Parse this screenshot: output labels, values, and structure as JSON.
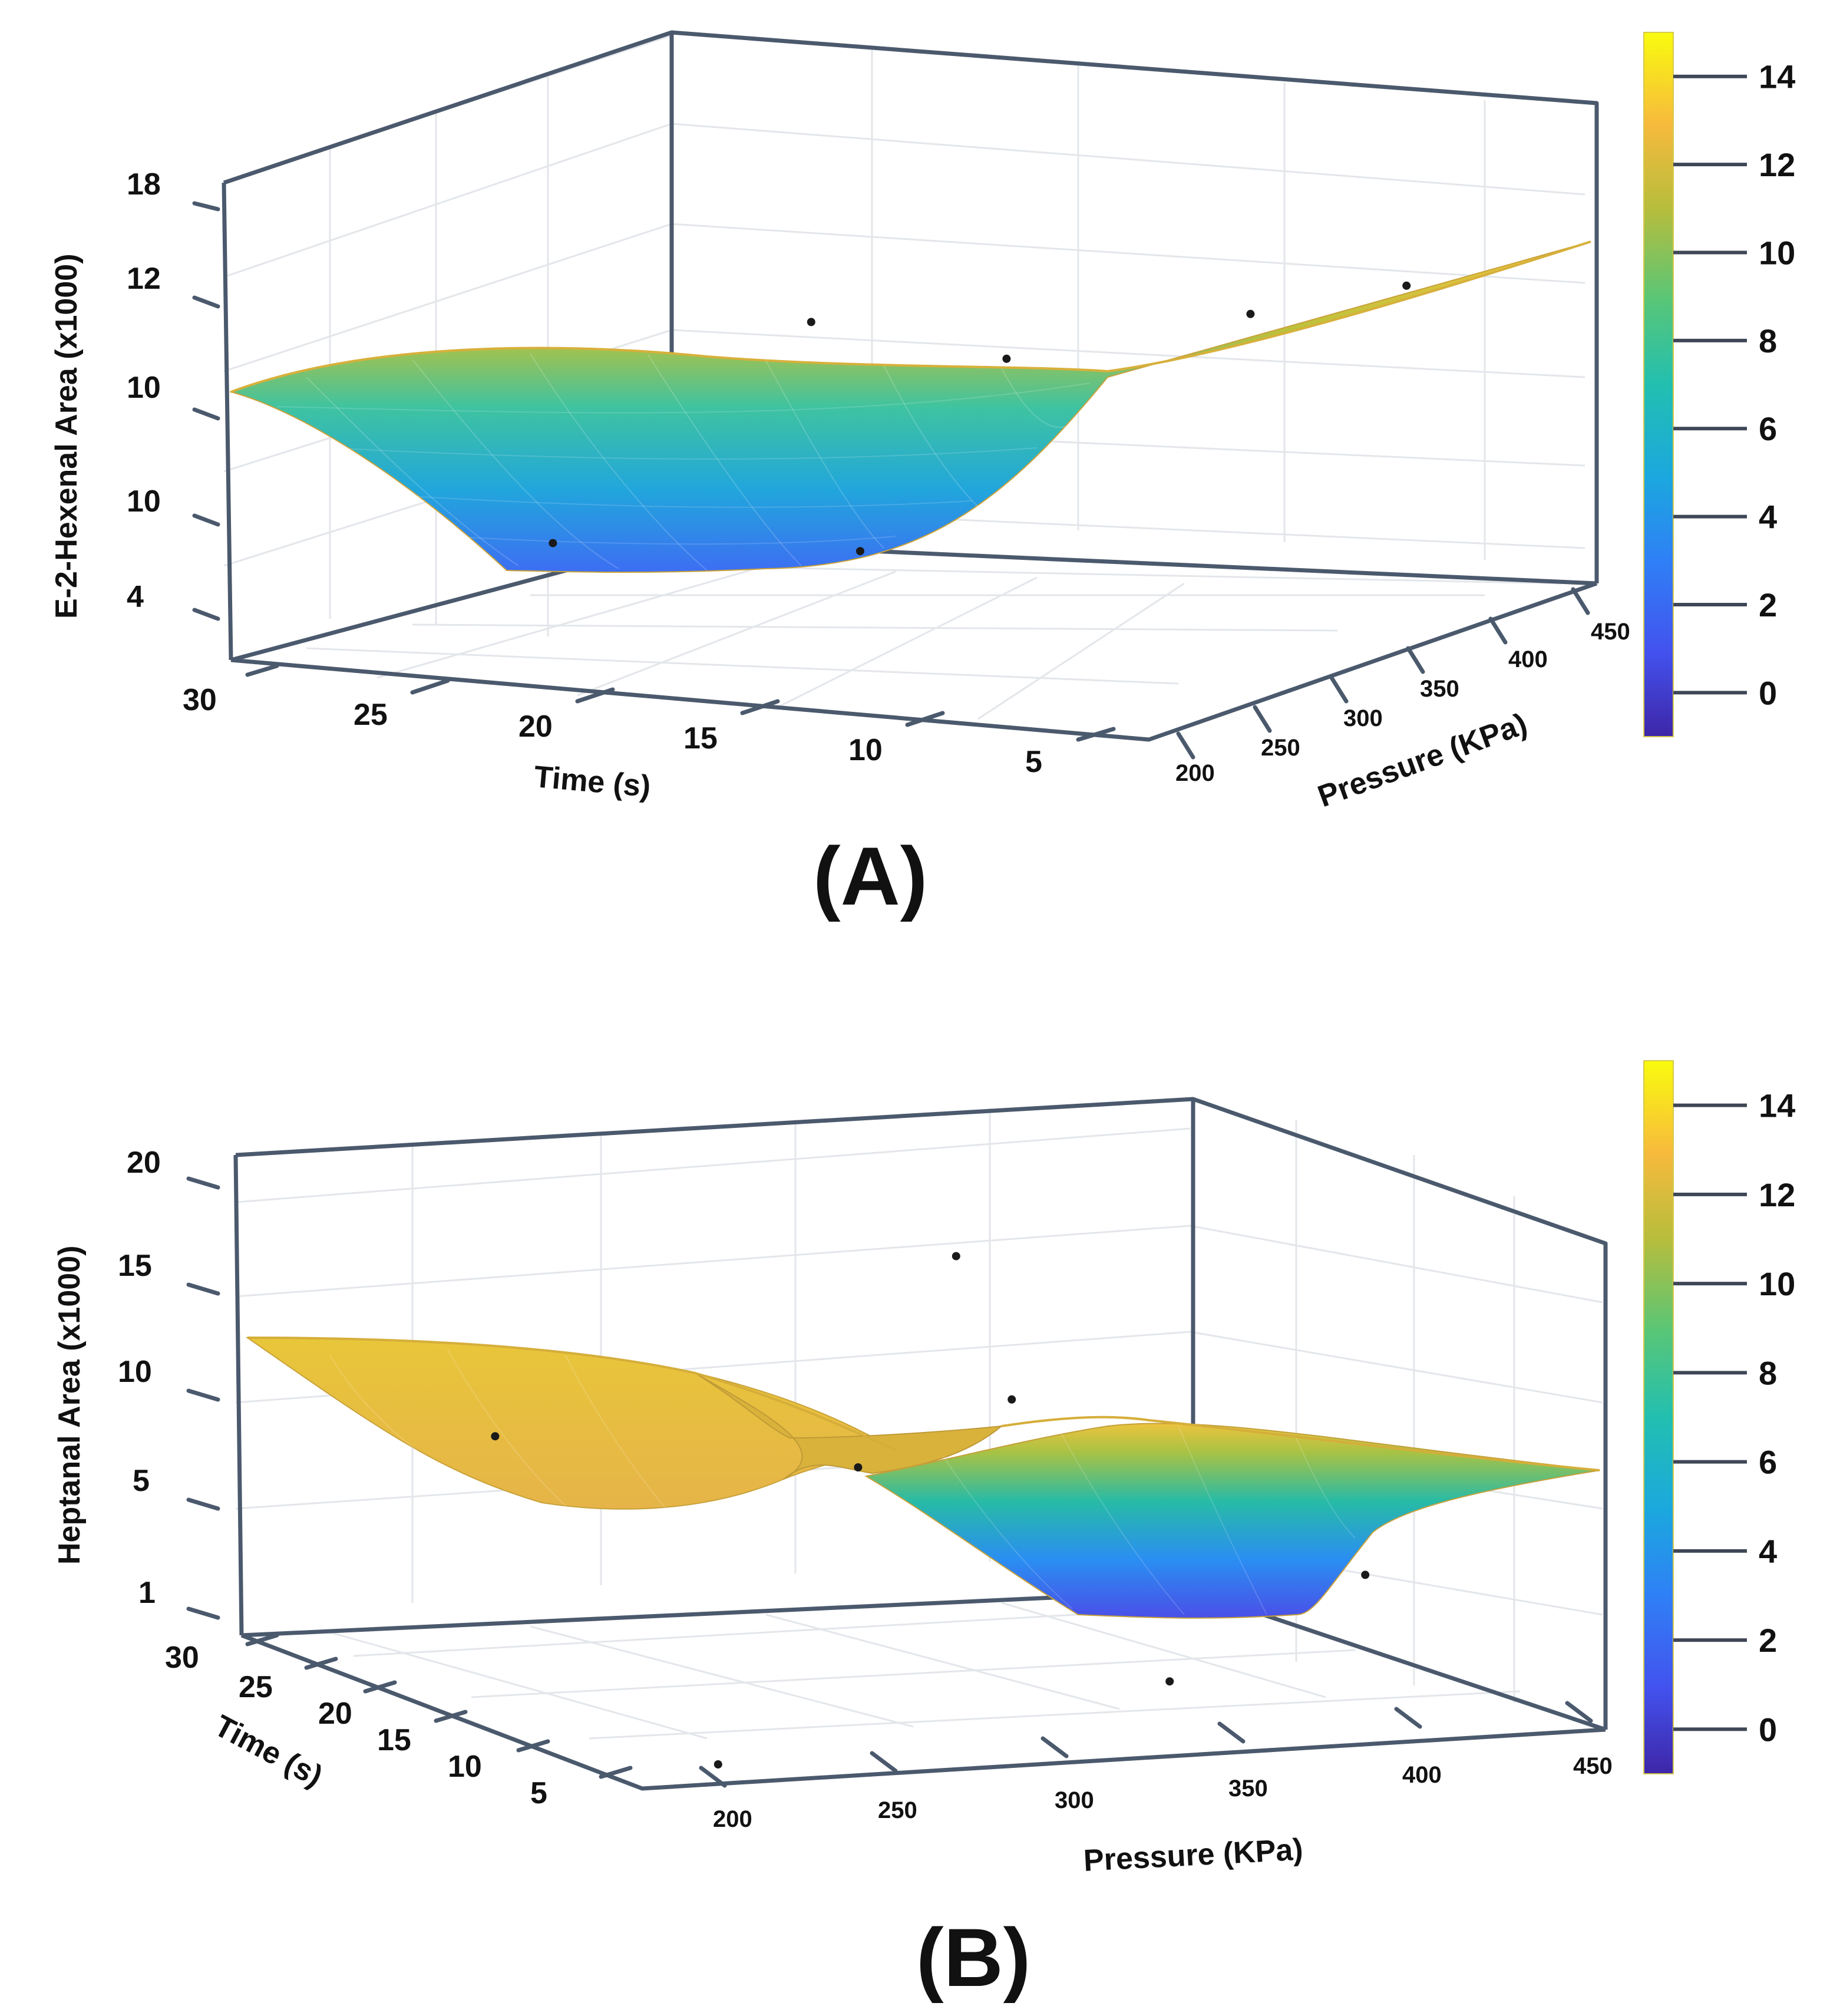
{
  "chart_data": [
    {
      "type": "surface3d",
      "panel_label": "(A)",
      "zlabel": "E-2-Hexenal Area (x1000)",
      "xlabel": "Time (s)",
      "ylabel": "Pressure (KPa)",
      "z_ticks": [
        "18",
        "12",
        "10",
        "10",
        "4"
      ],
      "x_ticks": [
        "30",
        "25",
        "20",
        "15",
        "10",
        "5"
      ],
      "y_ticks": [
        "200",
        "250",
        "300",
        "350",
        "400",
        "450"
      ],
      "colorbar_ticks": [
        "14",
        "12",
        "10",
        "8",
        "6",
        "4",
        "2",
        "0"
      ],
      "colorbar_range": [
        -1,
        15
      ],
      "colorscale": "parula",
      "surface_shape": "valley",
      "edge_value": 12,
      "valley_min": 2,
      "points": [
        {
          "time": 22,
          "pressure": 230,
          "area": 6
        },
        {
          "time": 16,
          "pressure": 300,
          "area": 5
        },
        {
          "time": 20,
          "pressure": 360,
          "area": 11
        },
        {
          "time": 13,
          "pressure": 330,
          "area": 11
        },
        {
          "time": 8,
          "pressure": 380,
          "area": 12
        },
        {
          "time": 6,
          "pressure": 440,
          "area": 12
        }
      ]
    },
    {
      "type": "surface3d",
      "panel_label": "(B)",
      "zlabel": "Heptanal Area (x1000)",
      "xlabel": "Pressure (KPa)",
      "ylabel": "Time (s)",
      "z_ticks": [
        "20",
        "15",
        "10",
        "5",
        "1"
      ],
      "x_ticks": [
        "200",
        "250",
        "300",
        "350",
        "400",
        "450"
      ],
      "y_ticks": [
        "30",
        "25",
        "20",
        "15",
        "10",
        "5"
      ],
      "colorbar_ticks": [
        "14",
        "12",
        "10",
        "8",
        "6",
        "4",
        "2",
        "0"
      ],
      "colorbar_range": [
        -1,
        15
      ],
      "colorscale": "parula",
      "surface_shape": "saddle",
      "edge_value": 12,
      "valley_min": 2,
      "points": [
        {
          "pressure": 230,
          "time": 22,
          "area": 11
        },
        {
          "pressure": 310,
          "time": 18,
          "area": 10
        },
        {
          "pressure": 360,
          "time": 20,
          "area": 12
        },
        {
          "pressure": 420,
          "time": 12,
          "area": 6
        },
        {
          "pressure": 350,
          "time": 8,
          "area": 3
        },
        {
          "pressure": 380,
          "time": 28,
          "area": 16
        },
        {
          "pressure": 220,
          "time": 6,
          "area": 1
        }
      ]
    }
  ]
}
